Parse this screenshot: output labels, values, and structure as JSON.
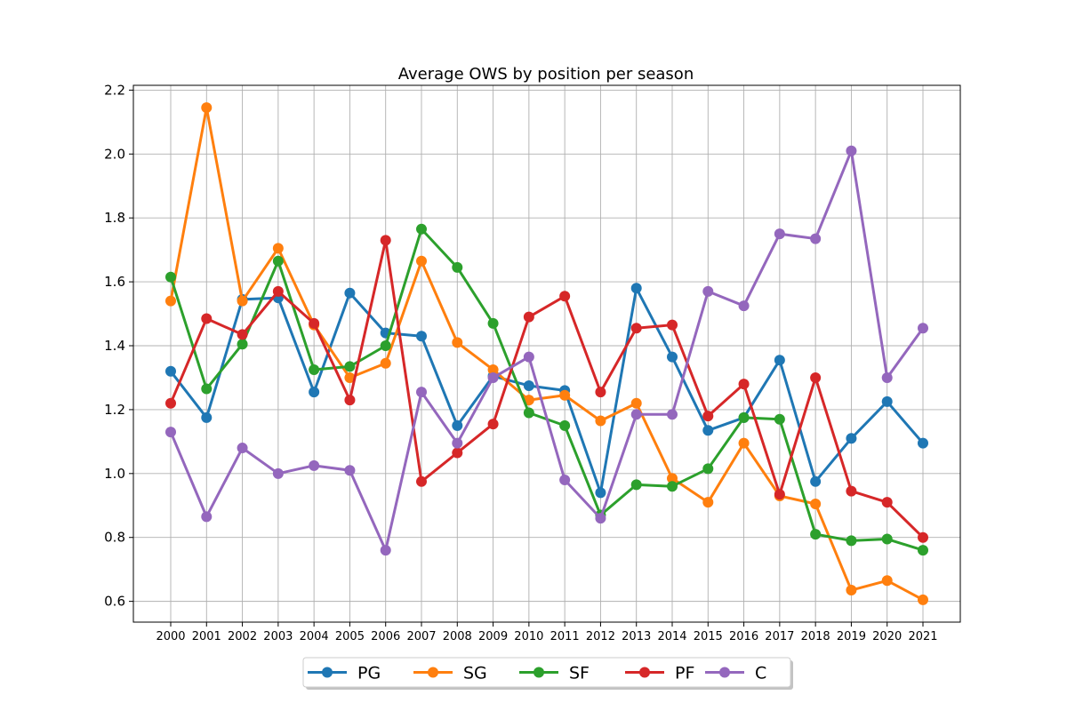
{
  "chart_data": {
    "type": "line",
    "title": "Average OWS by position per season",
    "xlabel": "",
    "ylabel": "",
    "categories": [
      "2000",
      "2001",
      "2002",
      "2003",
      "2004",
      "2005",
      "2006",
      "2007",
      "2008",
      "2009",
      "2010",
      "2011",
      "2012",
      "2013",
      "2014",
      "2015",
      "2016",
      "2017",
      "2018",
      "2019",
      "2020",
      "2021"
    ],
    "ylim": [
      0.535,
      2.215
    ],
    "yticks": [
      "0.6",
      "0.8",
      "1.0",
      "1.2",
      "1.4",
      "1.6",
      "1.8",
      "2.0",
      "2.2"
    ],
    "grid": true,
    "legend_position": "bottom-center",
    "series": [
      {
        "name": "PG",
        "color": "#1f77b4",
        "values": [
          1.32,
          1.175,
          1.545,
          1.55,
          1.255,
          1.565,
          1.44,
          1.43,
          1.15,
          1.305,
          1.275,
          1.26,
          0.94,
          1.58,
          1.365,
          1.135,
          1.175,
          1.355,
          0.975,
          1.11,
          1.225,
          1.095
        ]
      },
      {
        "name": "SG",
        "color": "#ff7f0e",
        "values": [
          1.54,
          2.145,
          1.54,
          1.705,
          1.465,
          1.3,
          1.345,
          1.665,
          1.41,
          1.325,
          1.23,
          1.245,
          1.165,
          1.22,
          0.985,
          0.91,
          1.095,
          0.93,
          0.905,
          0.635,
          0.665,
          0.605
        ]
      },
      {
        "name": "SF",
        "color": "#2ca02c",
        "values": [
          1.615,
          1.265,
          1.405,
          1.665,
          1.325,
          1.335,
          1.4,
          1.765,
          1.645,
          1.47,
          1.19,
          1.15,
          0.87,
          0.965,
          0.96,
          1.015,
          1.175,
          1.17,
          0.81,
          0.79,
          0.795,
          0.76
        ]
      },
      {
        "name": "PF",
        "color": "#d62728",
        "values": [
          1.22,
          1.485,
          1.435,
          1.57,
          1.47,
          1.23,
          1.73,
          0.975,
          1.065,
          1.155,
          1.49,
          1.555,
          1.255,
          1.455,
          1.465,
          1.18,
          1.28,
          0.935,
          1.3,
          0.945,
          0.91,
          0.8
        ]
      },
      {
        "name": "C",
        "color": "#9467bd",
        "values": [
          1.13,
          0.865,
          1.08,
          1.0,
          1.025,
          1.01,
          0.76,
          1.255,
          1.095,
          1.3,
          1.365,
          0.98,
          0.86,
          1.185,
          1.185,
          1.57,
          1.525,
          1.75,
          1.735,
          2.01,
          1.3,
          1.455
        ]
      }
    ]
  }
}
